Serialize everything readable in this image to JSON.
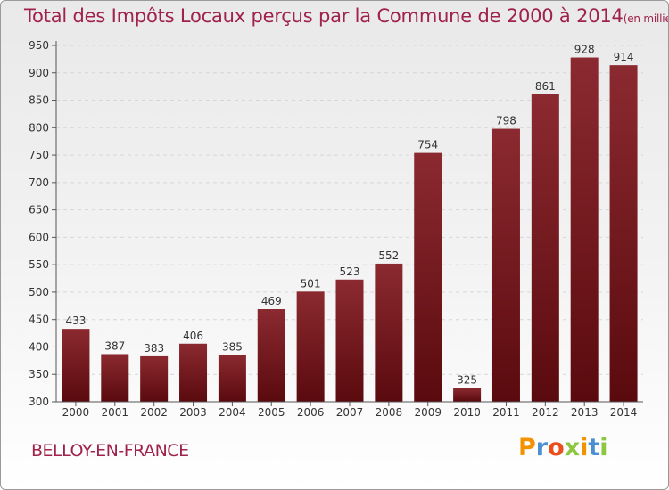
{
  "header": {
    "title": "Total des Impôts Locaux perçus par la Commune de 2000 à 2014",
    "unit": "(en milliers d'€)"
  },
  "footer": {
    "commune": "BELLOY-EN-FRANCE",
    "brand_letters": [
      "P",
      "r",
      "o",
      "x",
      "i",
      "t",
      "i"
    ],
    "brand_colors": [
      "#f39200",
      "#4a8fd0",
      "#e94e1b",
      "#8dc63f",
      "#f39200",
      "#4a8fd0",
      "#8dc63f"
    ]
  },
  "chart_data": {
    "type": "bar",
    "categories": [
      "2000",
      "2001",
      "2002",
      "2003",
      "2004",
      "2005",
      "2006",
      "2007",
      "2008",
      "2009",
      "2010",
      "2011",
      "2012",
      "2013",
      "2014"
    ],
    "values": [
      433,
      387,
      383,
      406,
      385,
      469,
      501,
      523,
      552,
      754,
      325,
      798,
      861,
      928,
      914
    ],
    "ylim": [
      300,
      950
    ],
    "yticks": [
      300,
      350,
      400,
      450,
      500,
      550,
      600,
      650,
      700,
      750,
      800,
      850,
      900,
      950
    ],
    "grid": true,
    "bar_color_top": "#8b2a30",
    "bar_color_bottom": "#5a0a0e",
    "title": "Total des Impôts Locaux perçus par la Commune de 2000 à 2014",
    "xlabel": "",
    "ylabel": ""
  }
}
